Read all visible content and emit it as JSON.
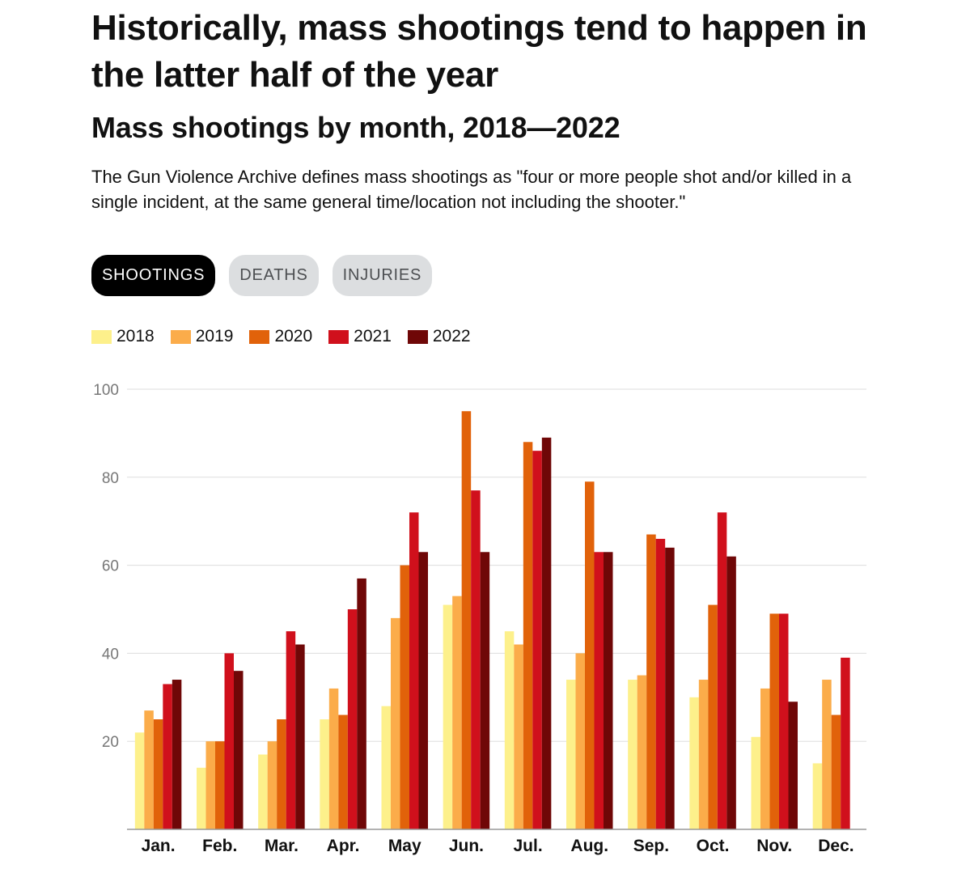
{
  "header": {
    "title": "Historically, mass shootings tend to happen in the latter half of the year",
    "subtitle": "Mass shootings by month, 2018—2022",
    "description": "The Gun Violence Archive defines mass shootings as \"four or more people shot and/or killed in a single incident, at the same general time/location not including the shooter.\""
  },
  "tabs": [
    {
      "label": "SHOOTINGS",
      "active": true
    },
    {
      "label": "DEATHS",
      "active": false
    },
    {
      "label": "INJURIES",
      "active": false
    }
  ],
  "colors": {
    "2018": "#fdf08b",
    "2019": "#fbac4a",
    "2020": "#e1620a",
    "2021": "#d0101c",
    "2022": "#6f0707",
    "grid": "#dddddd",
    "axis_text": "#777777"
  },
  "chart_data": {
    "type": "bar",
    "categories": [
      "Jan.",
      "Feb.",
      "Mar.",
      "Apr.",
      "May",
      "Jun.",
      "Jul.",
      "Aug.",
      "Sep.",
      "Oct.",
      "Nov.",
      "Dec."
    ],
    "series": [
      {
        "name": "2018",
        "values": [
          22,
          14,
          17,
          25,
          28,
          51,
          45,
          34,
          34,
          30,
          21,
          15
        ]
      },
      {
        "name": "2019",
        "values": [
          27,
          20,
          20,
          32,
          48,
          53,
          42,
          40,
          35,
          34,
          32,
          34
        ]
      },
      {
        "name": "2020",
        "values": [
          25,
          20,
          25,
          26,
          60,
          95,
          88,
          79,
          67,
          51,
          49,
          26
        ]
      },
      {
        "name": "2021",
        "values": [
          33,
          40,
          45,
          50,
          72,
          77,
          86,
          63,
          66,
          72,
          49,
          39
        ]
      },
      {
        "name": "2022",
        "values": [
          34,
          36,
          42,
          57,
          63,
          63,
          89,
          63,
          64,
          62,
          29,
          null
        ]
      }
    ],
    "title": "Mass shootings by month, 2018—2022",
    "xlabel": "",
    "ylabel": "",
    "ylim": [
      0,
      100
    ],
    "yticks": [
      20,
      40,
      60,
      80,
      100
    ],
    "grid": true,
    "legend_placement": "top-left"
  }
}
